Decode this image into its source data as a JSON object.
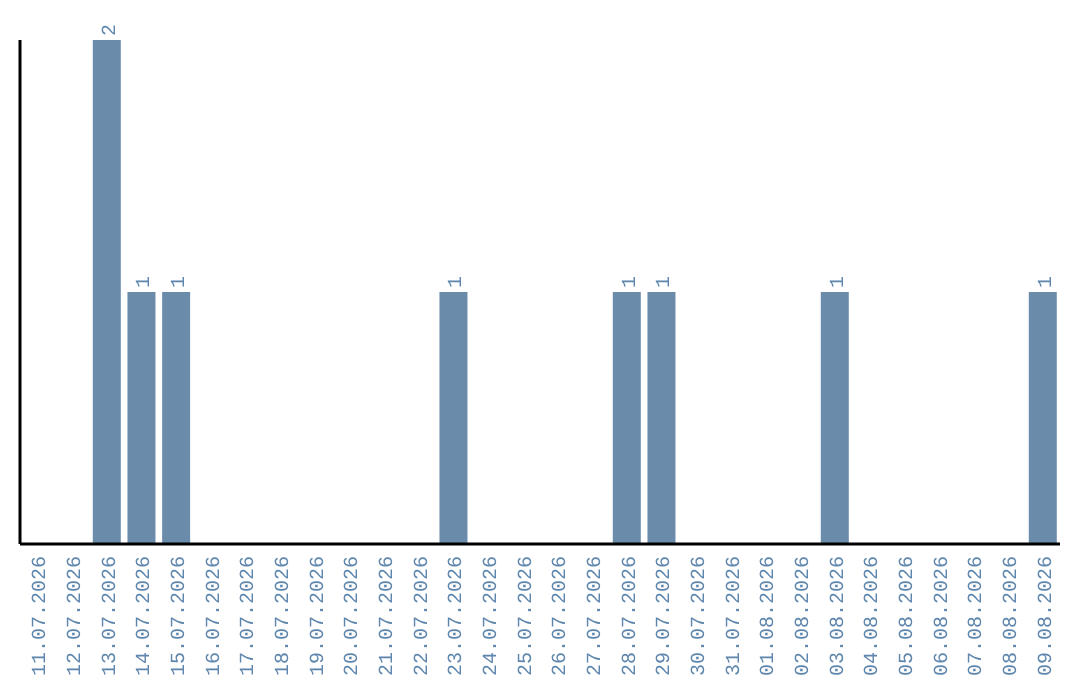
{
  "chart_data": {
    "type": "bar",
    "categories": [
      "11.07.2026",
      "12.07.2026",
      "13.07.2026",
      "14.07.2026",
      "15.07.2026",
      "16.07.2026",
      "17.07.2026",
      "18.07.2026",
      "19.07.2026",
      "20.07.2026",
      "21.07.2026",
      "22.07.2026",
      "23.07.2026",
      "24.07.2026",
      "25.07.2026",
      "26.07.2026",
      "27.07.2026",
      "28.07.2026",
      "29.07.2026",
      "30.07.2026",
      "31.07.2026",
      "01.08.2026",
      "02.08.2026",
      "03.08.2026",
      "04.08.2026",
      "05.08.2026",
      "06.08.2026",
      "07.08.2026",
      "08.08.2026",
      "09.08.2026"
    ],
    "values": [
      0,
      0,
      2,
      1,
      1,
      0,
      0,
      0,
      0,
      0,
      0,
      0,
      1,
      0,
      0,
      0,
      0,
      1,
      1,
      0,
      0,
      0,
      0,
      1,
      0,
      0,
      0,
      0,
      0,
      1
    ],
    "value_labels": [
      null,
      null,
      "2",
      "1",
      "1",
      null,
      null,
      null,
      null,
      null,
      null,
      null,
      "1",
      null,
      null,
      null,
      null,
      "1",
      "1",
      null,
      null,
      null,
      null,
      "1",
      null,
      null,
      null,
      null,
      null,
      "1"
    ],
    "color": "#6a8caa",
    "tick_labels": "x",
    "grid": false,
    "legend": false
  }
}
